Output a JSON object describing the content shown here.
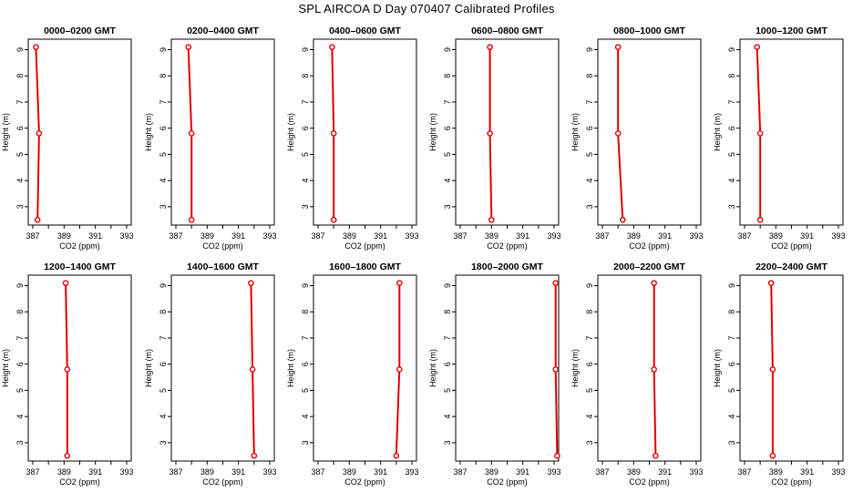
{
  "page": {
    "title": "SPL AIRCOA D  Day 070407  Calibrated Profiles"
  },
  "colors": {
    "profile": "#e00000",
    "axis": "#000000"
  },
  "chart_data": [
    {
      "type": "line",
      "title": "0000–0200 GMT",
      "xlabel": "CO2 (ppm)",
      "ylabel": "Height (m)",
      "xlim": [
        387,
        393
      ],
      "ylim": [
        2.3,
        9.4
      ],
      "xticks": [
        387,
        389,
        391,
        393
      ],
      "yticks": [
        3,
        4,
        5,
        6,
        7,
        8,
        9
      ],
      "x": [
        387.3,
        387.4,
        387.2
      ],
      "y": [
        2.5,
        5.8,
        9.1
      ]
    },
    {
      "type": "line",
      "title": "0200–0400 GMT",
      "xlabel": "CO2 (ppm)",
      "ylabel": "Height (m)",
      "xlim": [
        387,
        393
      ],
      "ylim": [
        2.3,
        9.4
      ],
      "xticks": [
        387,
        389,
        391,
        393
      ],
      "yticks": [
        3,
        4,
        5,
        6,
        7,
        8,
        9
      ],
      "x": [
        388.0,
        388.0,
        387.8
      ],
      "y": [
        2.5,
        5.8,
        9.1
      ]
    },
    {
      "type": "line",
      "title": "0400–0600 GMT",
      "xlabel": "CO2 (ppm)",
      "ylabel": "Height (m)",
      "xlim": [
        387,
        393
      ],
      "ylim": [
        2.3,
        9.4
      ],
      "xticks": [
        387,
        389,
        391,
        393
      ],
      "yticks": [
        3,
        4,
        5,
        6,
        7,
        8,
        9
      ],
      "x": [
        388.0,
        388.0,
        387.9
      ],
      "y": [
        2.5,
        5.8,
        9.1
      ]
    },
    {
      "type": "line",
      "title": "0600–0800 GMT",
      "xlabel": "CO2 (ppm)",
      "ylabel": "Height (m)",
      "xlim": [
        387,
        393
      ],
      "ylim": [
        2.3,
        9.4
      ],
      "xticks": [
        387,
        389,
        391,
        393
      ],
      "yticks": [
        3,
        4,
        5,
        6,
        7,
        8,
        9
      ],
      "x": [
        389.0,
        388.9,
        388.9
      ],
      "y": [
        2.5,
        5.8,
        9.1
      ]
    },
    {
      "type": "line",
      "title": "0800–1000 GMT",
      "xlabel": "CO2 (ppm)",
      "ylabel": "Height (m)",
      "xlim": [
        387,
        393
      ],
      "ylim": [
        2.3,
        9.4
      ],
      "xticks": [
        387,
        389,
        391,
        393
      ],
      "yticks": [
        3,
        4,
        5,
        6,
        7,
        8,
        9
      ],
      "x": [
        388.3,
        388.0,
        388.0
      ],
      "y": [
        2.5,
        5.8,
        9.1
      ]
    },
    {
      "type": "line",
      "title": "1000–1200 GMT",
      "xlabel": "CO2 (ppm)",
      "ylabel": "Height (m)",
      "xlim": [
        387,
        393
      ],
      "ylim": [
        2.3,
        9.4
      ],
      "xticks": [
        387,
        389,
        391,
        393
      ],
      "yticks": [
        3,
        4,
        5,
        6,
        7,
        8,
        9
      ],
      "x": [
        388.0,
        388.0,
        387.8
      ],
      "y": [
        2.5,
        5.8,
        9.1
      ]
    },
    {
      "type": "line",
      "title": "1200–1400 GMT",
      "xlabel": "CO2 (ppm)",
      "ylabel": "Height (m)",
      "xlim": [
        387,
        393
      ],
      "ylim": [
        2.3,
        9.4
      ],
      "xticks": [
        387,
        389,
        391,
        393
      ],
      "yticks": [
        3,
        4,
        5,
        6,
        7,
        8,
        9
      ],
      "x": [
        389.2,
        389.2,
        389.1
      ],
      "y": [
        2.5,
        5.8,
        9.1
      ]
    },
    {
      "type": "line",
      "title": "1400–1600 GMT",
      "xlabel": "CO2 (ppm)",
      "ylabel": "Height (m)",
      "xlim": [
        387,
        393
      ],
      "ylim": [
        2.3,
        9.4
      ],
      "xticks": [
        387,
        389,
        391,
        393
      ],
      "yticks": [
        3,
        4,
        5,
        6,
        7,
        8,
        9
      ],
      "x": [
        392.0,
        391.9,
        391.8
      ],
      "y": [
        2.5,
        5.8,
        9.1
      ]
    },
    {
      "type": "line",
      "title": "1600–1800 GMT",
      "xlabel": "CO2 (ppm)",
      "ylabel": "Height (m)",
      "xlim": [
        387,
        393
      ],
      "ylim": [
        2.3,
        9.4
      ],
      "xticks": [
        387,
        389,
        391,
        393
      ],
      "yticks": [
        3,
        4,
        5,
        6,
        7,
        8,
        9
      ],
      "x": [
        392.0,
        392.2,
        392.2
      ],
      "y": [
        2.5,
        5.8,
        9.1
      ]
    },
    {
      "type": "line",
      "title": "1800–2000 GMT",
      "xlabel": "CO2 (ppm)",
      "ylabel": "Height (m)",
      "xlim": [
        387,
        393
      ],
      "ylim": [
        2.3,
        9.4
      ],
      "xticks": [
        387,
        389,
        391,
        393
      ],
      "yticks": [
        3,
        4,
        5,
        6,
        7,
        8,
        9
      ],
      "x": [
        393.2,
        393.1,
        393.1
      ],
      "y": [
        2.5,
        5.8,
        9.1
      ]
    },
    {
      "type": "line",
      "title": "2000–2200 GMT",
      "xlabel": "CO2 (ppm)",
      "ylabel": "Height (m)",
      "xlim": [
        387,
        393
      ],
      "ylim": [
        2.3,
        9.4
      ],
      "xticks": [
        387,
        389,
        391,
        393
      ],
      "yticks": [
        3,
        4,
        5,
        6,
        7,
        8,
        9
      ],
      "x": [
        390.4,
        390.3,
        390.3
      ],
      "y": [
        2.5,
        5.8,
        9.1
      ]
    },
    {
      "type": "line",
      "title": "2200–2400 GMT",
      "xlabel": "CO2 (ppm)",
      "ylabel": "Height (m)",
      "xlim": [
        387,
        393
      ],
      "ylim": [
        2.3,
        9.4
      ],
      "xticks": [
        387,
        389,
        391,
        393
      ],
      "yticks": [
        3,
        4,
        5,
        6,
        7,
        8,
        9
      ],
      "x": [
        388.8,
        388.8,
        388.7
      ],
      "y": [
        2.5,
        5.8,
        9.1
      ]
    }
  ]
}
